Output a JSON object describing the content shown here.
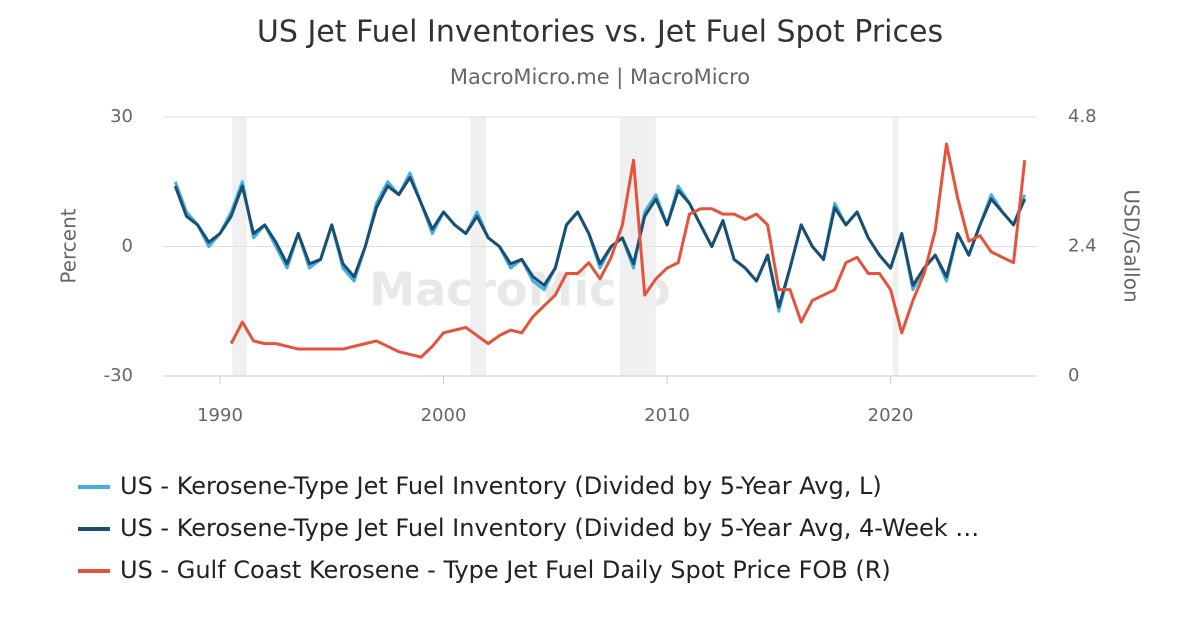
{
  "chart_data": {
    "type": "line",
    "title": "US Jet Fuel Inventories vs. Jet Fuel Spot Prices",
    "subtitle": "MacroMicro.me | MacroMicro",
    "watermark": "MacroMicro",
    "y_label": "Percent",
    "y2_label": "USD/Gallon",
    "xlim": [
      1987.45,
      2026.55
    ],
    "xticks": [
      1990,
      2000,
      2010,
      2020
    ],
    "ylim": [
      -30,
      30
    ],
    "yticks": [
      -30,
      0,
      30
    ],
    "y2lim": [
      0,
      4.8
    ],
    "y2ticks": [
      0,
      2.4,
      4.8
    ],
    "grid": true,
    "shaded_ranges": [
      [
        1990.55,
        1991.2
      ],
      [
        2001.2,
        2001.9
      ],
      [
        2007.9,
        2009.5
      ],
      [
        2020.1,
        2020.35
      ]
    ],
    "x": [
      1988,
      1988.5,
      1989,
      1989.5,
      1990,
      1990.5,
      1991,
      1991.5,
      1992,
      1992.5,
      1993,
      1993.5,
      1994,
      1994.5,
      1995,
      1995.5,
      1996,
      1996.5,
      1997,
      1997.5,
      1998,
      1998.5,
      1999,
      1999.5,
      2000,
      2000.5,
      2001,
      2001.5,
      2002,
      2002.5,
      2003,
      2003.5,
      2004,
      2004.5,
      2005,
      2005.5,
      2006,
      2006.5,
      2007,
      2007.5,
      2008,
      2008.5,
      2009,
      2009.5,
      2010,
      2010.5,
      2011,
      2011.5,
      2012,
      2012.5,
      2013,
      2013.5,
      2014,
      2014.5,
      2015,
      2015.5,
      2016,
      2016.5,
      2017,
      2017.5,
      2018,
      2018.5,
      2019,
      2019.5,
      2020,
      2020.5,
      2021,
      2021.5,
      2022,
      2022.5,
      2023,
      2023.5,
      2024,
      2024.5,
      2025,
      2025.5,
      2026
    ],
    "series": [
      {
        "name": "US - Kerosene-Type Jet Fuel Inventory (Divided by 5-Year Avg, L)",
        "color": "#41b0e0",
        "values": [
          15,
          8,
          5,
          0,
          3,
          8,
          15,
          2,
          5,
          0,
          -5,
          3,
          -5,
          -3,
          5,
          -5,
          -8,
          0,
          10,
          15,
          12,
          17,
          10,
          3,
          8,
          5,
          3,
          8,
          2,
          0,
          -5,
          -3,
          -8,
          -10,
          -5,
          5,
          8,
          3,
          -5,
          0,
          2,
          -5,
          8,
          12,
          5,
          14,
          10,
          5,
          0,
          6,
          -3,
          -5,
          -8,
          -2,
          -15,
          -5,
          5,
          0,
          -3,
          10,
          5,
          8,
          2,
          -2,
          -5,
          3,
          -10,
          -5,
          -2,
          -8,
          3,
          -2,
          5,
          12,
          8,
          5,
          12
        ]
      },
      {
        "name": "US - Kerosene-Type Jet Fuel Inventory (Divided by 5-Year Avg, 4-Week …",
        "color": "#1b4f72",
        "values": [
          14,
          7,
          5,
          1,
          3,
          7,
          14,
          3,
          5,
          1,
          -4,
          3,
          -4,
          -3,
          5,
          -4,
          -7,
          0,
          9,
          14,
          12,
          16,
          10,
          4,
          8,
          5,
          3,
          7,
          2,
          0,
          -4,
          -3,
          -7,
          -9,
          -5,
          5,
          8,
          3,
          -4,
          0,
          2,
          -4,
          7,
          11,
          5,
          13,
          10,
          5,
          0,
          6,
          -3,
          -5,
          -8,
          -2,
          -14,
          -5,
          5,
          0,
          -3,
          9,
          5,
          8,
          2,
          -2,
          -5,
          3,
          -9,
          -5,
          -2,
          -7,
          3,
          -2,
          5,
          11,
          8,
          5,
          11
        ]
      },
      {
        "name": "US - Gulf Coast Kerosene - Type Jet Fuel Daily Spot Price FOB (R)",
        "color": "#e4533a",
        "axis": "y2",
        "values": [
          null,
          null,
          null,
          null,
          null,
          0.6,
          1.0,
          0.65,
          0.6,
          0.6,
          0.55,
          0.5,
          0.5,
          0.5,
          0.5,
          0.5,
          0.55,
          0.6,
          0.65,
          0.55,
          0.45,
          0.4,
          0.35,
          0.55,
          0.8,
          0.85,
          0.9,
          0.75,
          0.6,
          0.75,
          0.85,
          0.8,
          1.1,
          1.3,
          1.5,
          1.9,
          1.9,
          2.1,
          1.8,
          2.2,
          2.8,
          4.0,
          1.5,
          1.8,
          2.0,
          2.1,
          3.0,
          3.1,
          3.1,
          3.0,
          3.0,
          2.9,
          3.0,
          2.8,
          1.6,
          1.6,
          1.0,
          1.4,
          1.5,
          1.6,
          2.1,
          2.2,
          1.9,
          1.9,
          1.6,
          0.8,
          1.4,
          1.9,
          2.7,
          4.3,
          3.3,
          2.5,
          2.6,
          2.3,
          2.2,
          2.1,
          4.0
        ]
      }
    ]
  }
}
